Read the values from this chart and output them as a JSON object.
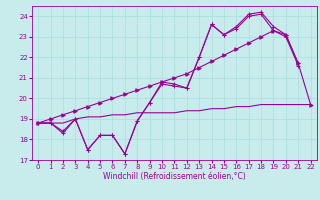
{
  "xlabel": "Windchill (Refroidissement éolien,°C)",
  "bg_color": "#c8ecec",
  "line_color": "#990099",
  "grid_color": "#aadddd",
  "x_values": [
    0,
    1,
    2,
    3,
    4,
    5,
    6,
    7,
    8,
    9,
    10,
    11,
    12,
    13,
    14,
    15,
    16,
    17,
    18,
    19,
    20,
    21,
    22
  ],
  "line_zigzag": [
    18.8,
    18.8,
    18.4,
    19.0,
    17.5,
    18.2,
    18.2,
    17.3,
    18.9,
    19.8,
    20.8,
    20.7,
    20.5,
    22.0,
    23.6,
    23.1,
    23.5,
    24.1,
    24.2,
    23.5,
    23.1,
    21.7,
    null
  ],
  "line_zigzag2": [
    18.8,
    18.8,
    18.3,
    19.0,
    17.5,
    18.2,
    18.2,
    17.3,
    18.9,
    19.8,
    20.7,
    20.6,
    20.5,
    22.0,
    23.6,
    23.1,
    23.4,
    24.0,
    24.1,
    23.3,
    23.0,
    21.6,
    null
  ],
  "line_diagonal": [
    18.8,
    19.0,
    19.2,
    19.4,
    19.6,
    19.8,
    20.0,
    20.2,
    20.4,
    20.6,
    20.8,
    21.0,
    21.2,
    21.5,
    21.8,
    22.1,
    22.4,
    22.7,
    23.0,
    23.3,
    23.1,
    21.7,
    19.7
  ],
  "line_flat": [
    18.8,
    18.8,
    18.8,
    19.0,
    19.1,
    19.1,
    19.2,
    19.2,
    19.3,
    19.3,
    19.3,
    19.3,
    19.4,
    19.4,
    19.5,
    19.5,
    19.6,
    19.6,
    19.7,
    19.7,
    19.7,
    19.7,
    19.7
  ],
  "ylim": [
    17.0,
    24.5
  ],
  "xlim": [
    -0.5,
    22.5
  ],
  "yticks": [
    17,
    18,
    19,
    20,
    21,
    22,
    23,
    24
  ],
  "xticks": [
    0,
    1,
    2,
    3,
    4,
    5,
    6,
    7,
    8,
    9,
    10,
    11,
    12,
    13,
    14,
    15,
    16,
    17,
    18,
    19,
    20,
    21,
    22
  ]
}
